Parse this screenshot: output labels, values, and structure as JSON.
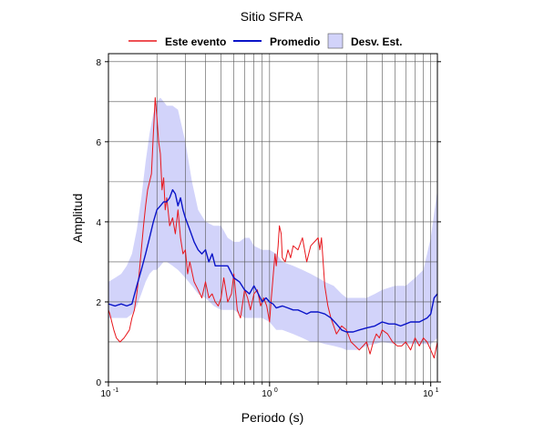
{
  "chart_data": {
    "type": "line",
    "title": "Sitio SFRA",
    "xlabel": "Periodo (s)",
    "ylabel": "Amplitud",
    "xscale": "log",
    "xlim": [
      0.1,
      11
    ],
    "ylim": [
      0,
      8.2
    ],
    "grid": true,
    "legend_position": "top",
    "x_tick_labels": [
      {
        "x": 0.1,
        "base": "10",
        "exp": "-1"
      },
      {
        "x": 1,
        "base": "10",
        "exp": "0"
      },
      {
        "x": 10,
        "base": "10",
        "exp": "1"
      }
    ],
    "y_ticks": [
      0,
      2,
      4,
      6,
      8
    ],
    "y_tick_labels": [
      "0",
      "2",
      "4",
      "6",
      "8"
    ],
    "colors": {
      "event": "#e8161c",
      "mean": "#0a14c8",
      "band_fill": "#d2d3fa"
    },
    "band": {
      "name": "Desv. Est.",
      "x": [
        0.1,
        0.11,
        0.12,
        0.13,
        0.14,
        0.15,
        0.16,
        0.17,
        0.18,
        0.19,
        0.2,
        0.21,
        0.22,
        0.23,
        0.25,
        0.27,
        0.3,
        0.33,
        0.36,
        0.4,
        0.45,
        0.5,
        0.55,
        0.6,
        0.65,
        0.7,
        0.75,
        0.8,
        0.9,
        1.0,
        1.1,
        1.2,
        1.4,
        1.6,
        1.8,
        2.0,
        2.2,
        2.5,
        2.8,
        3.0,
        3.5,
        4.0,
        4.5,
        5.0,
        6.0,
        7.0,
        8.0,
        9.0,
        10.0,
        11.0
      ],
      "upper": [
        2.5,
        2.6,
        2.7,
        2.9,
        3.2,
        3.8,
        4.6,
        5.5,
        6.2,
        6.7,
        7.0,
        7.1,
        7.0,
        6.9,
        6.9,
        6.8,
        6.0,
        5.0,
        4.3,
        4.0,
        3.9,
        3.9,
        3.6,
        3.5,
        3.5,
        3.6,
        3.6,
        3.4,
        3.3,
        3.3,
        3.2,
        3.0,
        2.9,
        2.8,
        2.7,
        2.6,
        2.5,
        2.4,
        2.2,
        2.1,
        2.1,
        2.1,
        2.2,
        2.3,
        2.4,
        2.4,
        2.6,
        2.8,
        3.6,
        4.8
      ],
      "lower": [
        1.6,
        1.6,
        1.6,
        1.6,
        1.7,
        1.9,
        2.2,
        2.5,
        2.7,
        2.8,
        2.8,
        2.9,
        3.0,
        3.0,
        2.9,
        2.8,
        2.6,
        2.4,
        2.2,
        2.1,
        1.9,
        1.8,
        1.8,
        1.8,
        1.7,
        1.6,
        1.6,
        1.6,
        1.6,
        1.5,
        1.3,
        1.3,
        1.2,
        1.1,
        1.0,
        1.0,
        0.95,
        0.9,
        0.85,
        0.8,
        0.8,
        0.9,
        0.95,
        1.0,
        0.95,
        0.95,
        0.95,
        0.95,
        0.95,
        1.1
      ]
    },
    "series": [
      {
        "name": "Este evento",
        "color": "#e8161c",
        "x": [
          0.1,
          0.102,
          0.105,
          0.108,
          0.112,
          0.118,
          0.125,
          0.13,
          0.135,
          0.14,
          0.145,
          0.15,
          0.155,
          0.16,
          0.165,
          0.17,
          0.175,
          0.18,
          0.185,
          0.19,
          0.195,
          0.2,
          0.205,
          0.21,
          0.215,
          0.22,
          0.225,
          0.23,
          0.24,
          0.25,
          0.26,
          0.27,
          0.28,
          0.29,
          0.3,
          0.31,
          0.32,
          0.34,
          0.36,
          0.38,
          0.4,
          0.42,
          0.44,
          0.46,
          0.48,
          0.5,
          0.52,
          0.55,
          0.58,
          0.6,
          0.63,
          0.66,
          0.7,
          0.73,
          0.76,
          0.8,
          0.84,
          0.88,
          0.92,
          0.96,
          1.0,
          1.02,
          1.05,
          1.08,
          1.1,
          1.13,
          1.15,
          1.18,
          1.2,
          1.25,
          1.3,
          1.35,
          1.4,
          1.5,
          1.6,
          1.7,
          1.8,
          1.9,
          2.0,
          2.05,
          2.1,
          2.2,
          2.3,
          2.4,
          2.5,
          2.6,
          2.8,
          3.0,
          3.2,
          3.4,
          3.6,
          3.8,
          4.0,
          4.2,
          4.4,
          4.6,
          4.8,
          5.0,
          5.4,
          5.8,
          6.2,
          6.6,
          7.0,
          7.5,
          8.0,
          8.5,
          9.0,
          9.5,
          10.0,
          10.5,
          11.0
        ],
        "values": [
          1.8,
          1.7,
          1.5,
          1.3,
          1.1,
          1.0,
          1.1,
          1.2,
          1.3,
          1.6,
          1.8,
          2.2,
          2.7,
          3.3,
          3.9,
          4.4,
          4.8,
          5.0,
          5.2,
          6.2,
          7.1,
          6.6,
          6.0,
          5.7,
          4.8,
          5.1,
          4.3,
          4.6,
          3.9,
          4.1,
          3.7,
          4.3,
          3.6,
          3.2,
          3.3,
          2.7,
          3.0,
          2.5,
          2.3,
          2.1,
          2.5,
          2.1,
          2.2,
          2.0,
          1.9,
          2.1,
          2.6,
          2.0,
          2.2,
          2.7,
          1.8,
          1.6,
          2.3,
          2.1,
          1.8,
          2.2,
          2.3,
          1.9,
          2.1,
          1.9,
          1.5,
          2.0,
          2.6,
          3.2,
          2.9,
          3.4,
          3.9,
          3.7,
          3.1,
          3.0,
          3.3,
          3.1,
          3.4,
          3.3,
          3.6,
          3.0,
          3.4,
          3.5,
          3.6,
          3.3,
          3.6,
          2.4,
          1.9,
          1.6,
          1.4,
          1.2,
          1.4,
          1.3,
          1.0,
          0.9,
          0.8,
          0.9,
          1.0,
          0.7,
          1.0,
          1.2,
          1.1,
          1.3,
          1.2,
          1.0,
          0.9,
          0.9,
          1.0,
          0.8,
          1.1,
          0.9,
          1.1,
          1.0,
          0.8,
          0.6,
          1.0
        ]
      },
      {
        "name": "Promedio",
        "color": "#0a14c8",
        "x": [
          0.1,
          0.11,
          0.12,
          0.13,
          0.14,
          0.15,
          0.16,
          0.17,
          0.18,
          0.19,
          0.2,
          0.21,
          0.22,
          0.23,
          0.24,
          0.25,
          0.26,
          0.27,
          0.28,
          0.29,
          0.3,
          0.32,
          0.34,
          0.36,
          0.38,
          0.4,
          0.42,
          0.44,
          0.46,
          0.5,
          0.55,
          0.6,
          0.65,
          0.7,
          0.75,
          0.8,
          0.85,
          0.9,
          0.95,
          1.0,
          1.05,
          1.1,
          1.2,
          1.3,
          1.4,
          1.5,
          1.6,
          1.7,
          1.8,
          1.9,
          2.0,
          2.2,
          2.4,
          2.6,
          2.8,
          3.0,
          3.3,
          3.6,
          4.0,
          4.5,
          5.0,
          5.5,
          6.0,
          6.5,
          7.0,
          7.5,
          8.0,
          8.5,
          9.0,
          9.5,
          10.0,
          10.5,
          11.0
        ],
        "values": [
          1.95,
          1.9,
          1.95,
          1.9,
          1.95,
          2.4,
          2.8,
          3.2,
          3.6,
          4.0,
          4.3,
          4.4,
          4.5,
          4.5,
          4.6,
          4.8,
          4.7,
          4.4,
          4.6,
          4.3,
          4.1,
          3.8,
          3.5,
          3.3,
          3.2,
          3.3,
          3.0,
          3.2,
          2.9,
          2.9,
          2.9,
          2.6,
          2.5,
          2.3,
          2.2,
          2.4,
          2.2,
          2.0,
          2.1,
          2.0,
          1.95,
          1.85,
          1.9,
          1.85,
          1.8,
          1.8,
          1.75,
          1.7,
          1.75,
          1.75,
          1.75,
          1.7,
          1.6,
          1.45,
          1.3,
          1.25,
          1.25,
          1.3,
          1.35,
          1.4,
          1.5,
          1.45,
          1.45,
          1.4,
          1.45,
          1.5,
          1.5,
          1.5,
          1.55,
          1.6,
          1.7,
          2.1,
          2.2
        ]
      }
    ]
  }
}
